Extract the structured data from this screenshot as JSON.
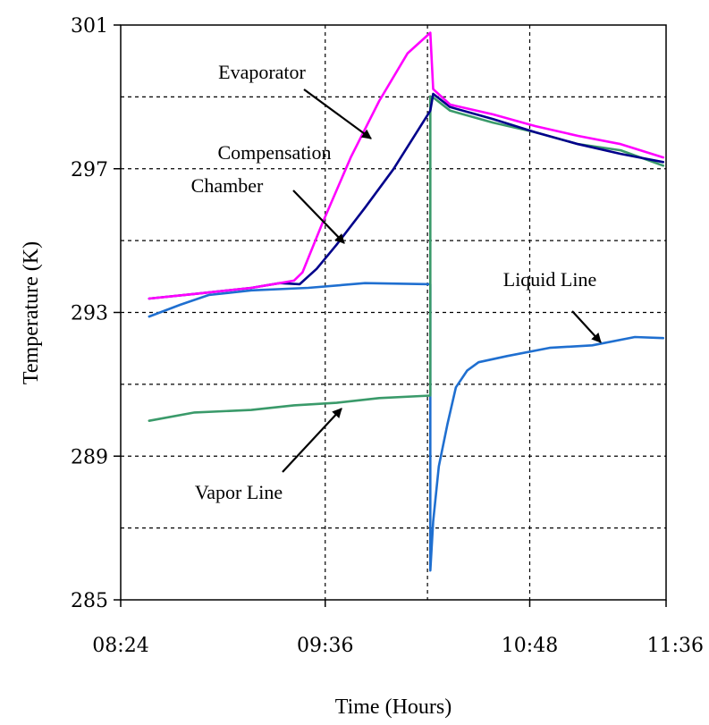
{
  "chart_data": {
    "type": "line",
    "title": "",
    "xlabel": "Time (Hours)",
    "ylabel": "Temperature (K)",
    "x_unit": "hours of day",
    "xlim": [
      "08:24",
      "11:36"
    ],
    "ylim": [
      285,
      301
    ],
    "x_ticks": [
      "08:24",
      "09:36",
      "10:48",
      "11:36"
    ],
    "y_ticks": [
      "285",
      "289",
      "293",
      "297",
      "301"
    ],
    "x_gridlines": [
      "09:36",
      "10:12",
      "10:48"
    ],
    "y_gridlines": [
      287,
      289,
      291,
      293,
      295,
      297,
      299
    ],
    "grid": true,
    "legend": "none (inline annotations with arrows)",
    "colors": {
      "Evaporator": "#ff00ff",
      "Compensation Chamber": "#00008b",
      "Liquid Line": "#1f6fd0",
      "Vapor Line": "#3a9a6a"
    },
    "series": [
      {
        "name": "Evaporator",
        "x": [
          "08:34",
          "08:50",
          "09:10",
          "09:20",
          "09:25",
          "09:28",
          "09:35",
          "09:45",
          "09:55",
          "10:05",
          "10:13",
          "10:14",
          "10:20",
          "10:35",
          "10:50",
          "11:05",
          "11:20",
          "11:35"
        ],
        "values": [
          293.4,
          293.5,
          293.7,
          293.8,
          293.9,
          294.1,
          295.5,
          297.3,
          298.9,
          300.2,
          300.8,
          299.2,
          298.8,
          298.5,
          298.2,
          297.9,
          297.7,
          297.3
        ]
      },
      {
        "name": "Compensation Chamber",
        "x": [
          "08:34",
          "08:50",
          "09:10",
          "09:20",
          "09:27",
          "09:33",
          "09:40",
          "09:50",
          "10:00",
          "10:13",
          "10:14",
          "10:20",
          "10:35",
          "10:50",
          "11:05",
          "11:20",
          "11:35"
        ],
        "values": [
          293.4,
          293.5,
          293.7,
          293.8,
          293.8,
          294.2,
          294.9,
          295.9,
          297.0,
          298.6,
          299.1,
          298.7,
          298.4,
          298.0,
          297.7,
          297.4,
          297.2
        ]
      },
      {
        "name": "Liquid Line",
        "x": [
          "08:34",
          "08:45",
          "08:55",
          "09:10",
          "09:30",
          "09:50",
          "10:13",
          "10:13",
          "10:14",
          "10:16",
          "10:19",
          "10:22",
          "10:26",
          "10:30",
          "10:40",
          "10:55",
          "11:10",
          "11:25",
          "11:35"
        ],
        "values": [
          292.9,
          293.2,
          293.5,
          293.6,
          293.7,
          293.8,
          293.8,
          285.8,
          287.2,
          288.7,
          289.9,
          290.9,
          291.4,
          291.6,
          291.8,
          292.0,
          292.1,
          292.3,
          292.3
        ]
      },
      {
        "name": "Vapor Line",
        "x": [
          "08:34",
          "08:50",
          "09:10",
          "09:25",
          "09:40",
          "09:55",
          "10:13",
          "10:13",
          "10:14",
          "10:20",
          "10:35",
          "10:50",
          "11:05",
          "11:20",
          "11:35"
        ],
        "values": [
          290.0,
          290.2,
          290.3,
          290.4,
          290.5,
          290.6,
          290.7,
          299.0,
          299.0,
          298.6,
          298.3,
          298.0,
          297.7,
          297.5,
          297.1
        ]
      }
    ],
    "annotations": [
      {
        "text": "Evaporator",
        "points_to": "Evaporator"
      },
      {
        "text": "Compensation",
        "points_to": "Compensation Chamber"
      },
      {
        "text": "Chamber",
        "points_to": "Compensation Chamber"
      },
      {
        "text": "Liquid Line",
        "points_to": "Liquid Line"
      },
      {
        "text": "Vapor Line",
        "points_to": "Vapor Line"
      }
    ]
  }
}
